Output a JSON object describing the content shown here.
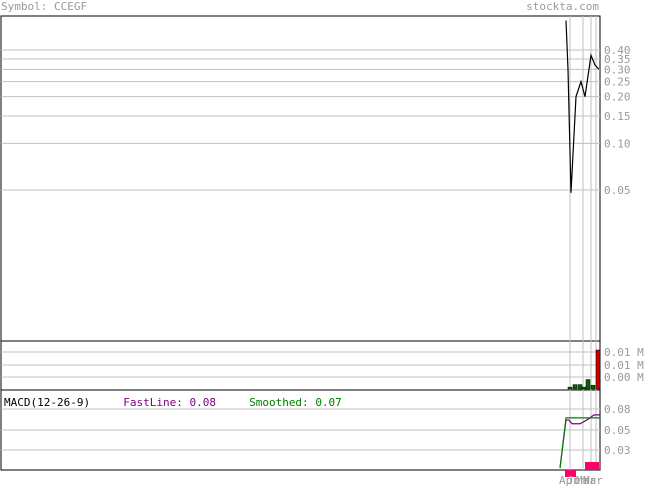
{
  "header": {
    "symbol_label": "Symbol:",
    "symbol": "CCEGF",
    "site": "stockta.com"
  },
  "macd": {
    "label": "MACD(12-26-9)",
    "fast_label": "FastLine:",
    "fast_value": "0.08",
    "smooth_label": "Smoothed:",
    "smooth_value": "0.07"
  },
  "colors": {
    "price_line": "#000000",
    "grid": "#c0c0c0",
    "axis_text": "#999999",
    "volume_up": "#006400",
    "volume_down": "#cc0000",
    "fast_line": "#800080",
    "smoothed_line": "#008000",
    "histogram": "#ff0066"
  },
  "chart_data": [
    {
      "type": "line",
      "panel": "price",
      "scale": "log",
      "y_ticks": [
        "0.40",
        "0.35",
        "0.30",
        "0.25",
        "0.20",
        "0.15",
        "0.10",
        "0.05"
      ],
      "series": [
        {
          "values": [
            0.62,
            0.3,
            0.048,
            0.2,
            0.25,
            0.2,
            0.37,
            0.32,
            0.3
          ]
        }
      ]
    },
    {
      "type": "bar",
      "panel": "volume",
      "y_ticks": [
        "0.01 M",
        "0.01 M",
        "0.00 M"
      ],
      "values": [
        0,
        0.0006,
        0.0014,
        0.0014,
        0.0006,
        0.003,
        0.0012,
        0.0124
      ],
      "colors": [
        "green",
        "green",
        "green",
        "green",
        "green",
        "green",
        "green",
        "red"
      ]
    },
    {
      "type": "line",
      "panel": "macd",
      "y_ticks": [
        "0.08",
        "0.05",
        "0.03"
      ],
      "x_ticks": [
        "Apr",
        "Jun",
        "Mar",
        "Mar"
      ],
      "series": [
        {
          "values": [
            0.0,
            0.065,
            0.065,
            0.06,
            0.06,
            0.066,
            0.072,
            0.072
          ]
        },
        {
          "values": [
            0.0,
            0.068,
            0.068,
            0.068,
            0.068,
            0.068,
            0.068,
            0.068
          ]
        }
      ],
      "histogram": [
        -0.004,
        -0.004,
        0,
        0,
        0,
        0.004,
        0.004,
        0.004
      ]
    }
  ]
}
